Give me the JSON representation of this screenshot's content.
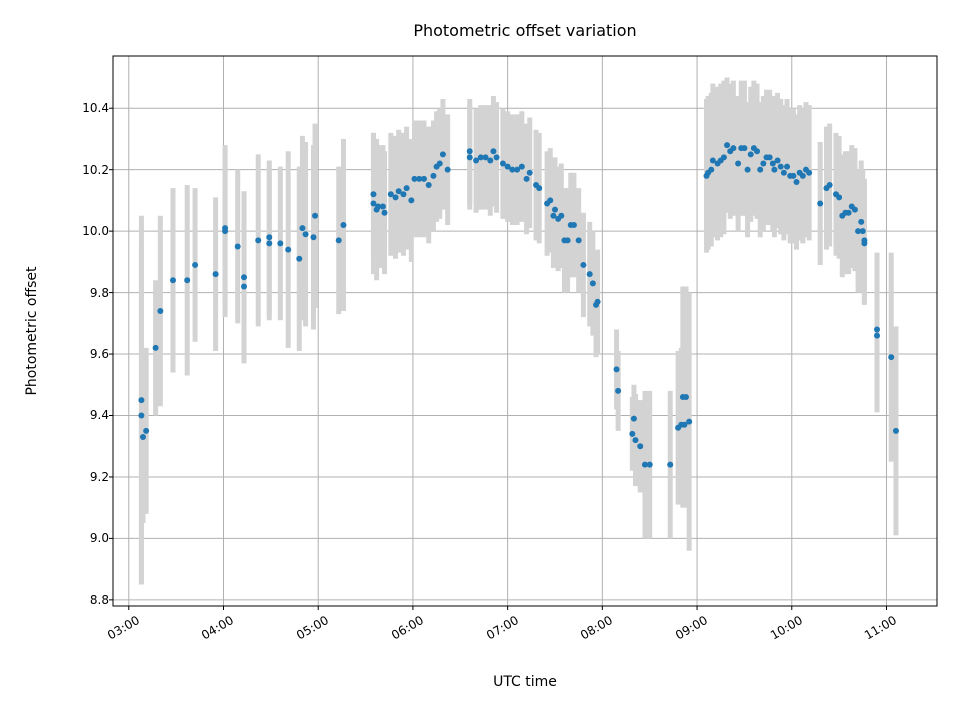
{
  "chart_data": {
    "type": "scatter",
    "title": "Photometric offset variation",
    "xlabel": "UTC time",
    "ylabel": "Photometric offset",
    "xlim": [
      "02:50",
      "11:32"
    ],
    "ylim": [
      8.78,
      10.57
    ],
    "grid": true,
    "colors": {
      "point": "#1f77b4",
      "errorbar": "#d3d3d3",
      "grid": "#b0b0b0"
    },
    "x_ticks": [
      "03:00",
      "04:00",
      "05:00",
      "06:00",
      "07:00",
      "08:00",
      "09:00",
      "10:00",
      "11:00"
    ],
    "y_ticks": [
      "8.8",
      "9.0",
      "9.2",
      "9.4",
      "9.6",
      "9.8",
      "10.0",
      "10.2",
      "10.4"
    ],
    "points": [
      {
        "x": "03:08",
        "y": 9.45,
        "err": 0.6
      },
      {
        "x": "03:08",
        "y": 9.4,
        "err": 0.55
      },
      {
        "x": "03:09",
        "y": 9.33,
        "err": 0.28
      },
      {
        "x": "03:11",
        "y": 9.35,
        "err": 0.27
      },
      {
        "x": "03:17",
        "y": 9.62,
        "err": 0.22
      },
      {
        "x": "03:20",
        "y": 9.74,
        "err": 0.31
      },
      {
        "x": "03:28",
        "y": 9.84,
        "err": 0.3
      },
      {
        "x": "03:37",
        "y": 9.84,
        "err": 0.31
      },
      {
        "x": "03:42",
        "y": 9.89,
        "err": 0.25
      },
      {
        "x": "03:55",
        "y": 9.86,
        "err": 0.25
      },
      {
        "x": "04:01",
        "y": 10.0,
        "err": 0.28
      },
      {
        "x": "04:01",
        "y": 10.01,
        "err": 0.26
      },
      {
        "x": "04:09",
        "y": 9.95,
        "err": 0.25
      },
      {
        "x": "04:13",
        "y": 9.85,
        "err": 0.28
      },
      {
        "x": "04:13",
        "y": 9.82,
        "err": 0.25
      },
      {
        "x": "04:22",
        "y": 9.97,
        "err": 0.28
      },
      {
        "x": "04:29",
        "y": 9.98,
        "err": 0.25
      },
      {
        "x": "04:29",
        "y": 9.96,
        "err": 0.25
      },
      {
        "x": "04:36",
        "y": 9.96,
        "err": 0.25
      },
      {
        "x": "04:41",
        "y": 9.94,
        "err": 0.32
      },
      {
        "x": "04:48",
        "y": 9.91,
        "err": 0.3
      },
      {
        "x": "04:50",
        "y": 10.01,
        "err": 0.3
      },
      {
        "x": "04:52",
        "y": 9.99,
        "err": 0.3
      },
      {
        "x": "04:57",
        "y": 9.98,
        "err": 0.3
      },
      {
        "x": "04:58",
        "y": 10.05,
        "err": 0.3
      },
      {
        "x": "05:13",
        "y": 9.97,
        "err": 0.24
      },
      {
        "x": "05:16",
        "y": 10.02,
        "err": 0.28
      },
      {
        "x": "05:35",
        "y": 10.12,
        "err": 0.2
      },
      {
        "x": "05:35",
        "y": 10.09,
        "err": 0.23
      },
      {
        "x": "05:37",
        "y": 10.07,
        "err": 0.23
      },
      {
        "x": "05:38",
        "y": 10.08,
        "err": 0.2
      },
      {
        "x": "05:41",
        "y": 10.08,
        "err": 0.2
      },
      {
        "x": "05:42",
        "y": 10.06,
        "err": 0.2
      },
      {
        "x": "05:46",
        "y": 10.12,
        "err": 0.2
      },
      {
        "x": "05:49",
        "y": 10.11,
        "err": 0.2
      },
      {
        "x": "05:51",
        "y": 10.13,
        "err": 0.2
      },
      {
        "x": "05:54",
        "y": 10.12,
        "err": 0.2
      },
      {
        "x": "05:56",
        "y": 10.14,
        "err": 0.2
      },
      {
        "x": "05:59",
        "y": 10.1,
        "err": 0.2
      },
      {
        "x": "06:01",
        "y": 10.17,
        "err": 0.19
      },
      {
        "x": "06:04",
        "y": 10.17,
        "err": 0.19
      },
      {
        "x": "06:07",
        "y": 10.17,
        "err": 0.19
      },
      {
        "x": "06:10",
        "y": 10.15,
        "err": 0.19
      },
      {
        "x": "06:13",
        "y": 10.18,
        "err": 0.18
      },
      {
        "x": "06:15",
        "y": 10.21,
        "err": 0.18
      },
      {
        "x": "06:17",
        "y": 10.22,
        "err": 0.18
      },
      {
        "x": "06:19",
        "y": 10.25,
        "err": 0.18
      },
      {
        "x": "06:22",
        "y": 10.2,
        "err": 0.18
      },
      {
        "x": "06:36",
        "y": 10.26,
        "err": 0.17
      },
      {
        "x": "06:36",
        "y": 10.24,
        "err": 0.17
      },
      {
        "x": "06:40",
        "y": 10.23,
        "err": 0.17
      },
      {
        "x": "06:43",
        "y": 10.24,
        "err": 0.17
      },
      {
        "x": "06:46",
        "y": 10.24,
        "err": 0.17
      },
      {
        "x": "06:49",
        "y": 10.23,
        "err": 0.18
      },
      {
        "x": "06:51",
        "y": 10.26,
        "err": 0.18
      },
      {
        "x": "06:53",
        "y": 10.24,
        "err": 0.18
      },
      {
        "x": "06:57",
        "y": 10.22,
        "err": 0.18
      },
      {
        "x": "07:00",
        "y": 10.21,
        "err": 0.18
      },
      {
        "x": "07:03",
        "y": 10.2,
        "err": 0.18
      },
      {
        "x": "07:06",
        "y": 10.2,
        "err": 0.18
      },
      {
        "x": "07:09",
        "y": 10.21,
        "err": 0.18
      },
      {
        "x": "07:12",
        "y": 10.17,
        "err": 0.18
      },
      {
        "x": "07:14",
        "y": 10.19,
        "err": 0.18
      },
      {
        "x": "07:18",
        "y": 10.15,
        "err": 0.18
      },
      {
        "x": "07:20",
        "y": 10.14,
        "err": 0.18
      },
      {
        "x": "07:25",
        "y": 10.09,
        "err": 0.17
      },
      {
        "x": "07:27",
        "y": 10.1,
        "err": 0.17
      },
      {
        "x": "07:29",
        "y": 10.05,
        "err": 0.17
      },
      {
        "x": "07:30",
        "y": 10.07,
        "err": 0.17
      },
      {
        "x": "07:32",
        "y": 10.04,
        "err": 0.17
      },
      {
        "x": "07:34",
        "y": 10.05,
        "err": 0.17
      },
      {
        "x": "07:36",
        "y": 9.97,
        "err": 0.17
      },
      {
        "x": "07:38",
        "y": 9.97,
        "err": 0.17
      },
      {
        "x": "07:40",
        "y": 10.02,
        "err": 0.17
      },
      {
        "x": "07:42",
        "y": 10.02,
        "err": 0.17
      },
      {
        "x": "07:45",
        "y": 9.97,
        "err": 0.17
      },
      {
        "x": "07:48",
        "y": 9.89,
        "err": 0.17
      },
      {
        "x": "07:52",
        "y": 9.86,
        "err": 0.17
      },
      {
        "x": "07:54",
        "y": 9.83,
        "err": 0.17
      },
      {
        "x": "07:56",
        "y": 9.76,
        "err": 0.17
      },
      {
        "x": "07:57",
        "y": 9.77,
        "err": 0.17
      },
      {
        "x": "08:09",
        "y": 9.55,
        "err": 0.13
      },
      {
        "x": "08:10",
        "y": 9.48,
        "err": 0.13
      },
      {
        "x": "08:19",
        "y": 9.34,
        "err": 0.12
      },
      {
        "x": "08:20",
        "y": 9.39,
        "err": 0.11
      },
      {
        "x": "08:21",
        "y": 9.32,
        "err": 0.15
      },
      {
        "x": "08:24",
        "y": 9.3,
        "err": 0.15
      },
      {
        "x": "08:27",
        "y": 9.24,
        "err": 0.24
      },
      {
        "x": "08:30",
        "y": 9.24,
        "err": 0.24
      },
      {
        "x": "08:43",
        "y": 9.24,
        "err": 0.24
      },
      {
        "x": "08:48",
        "y": 9.36,
        "err": 0.25
      },
      {
        "x": "08:50",
        "y": 9.37,
        "err": 0.25
      },
      {
        "x": "08:51",
        "y": 9.46,
        "err": 0.36
      },
      {
        "x": "08:52",
        "y": 9.37,
        "err": 0.2
      },
      {
        "x": "08:53",
        "y": 9.46,
        "err": 0.36
      },
      {
        "x": "08:55",
        "y": 9.38,
        "err": 0.42
      },
      {
        "x": "09:06",
        "y": 10.18,
        "err": 0.25
      },
      {
        "x": "09:07",
        "y": 10.19,
        "err": 0.25
      },
      {
        "x": "09:09",
        "y": 10.2,
        "err": 0.25
      },
      {
        "x": "09:10",
        "y": 10.23,
        "err": 0.25
      },
      {
        "x": "09:13",
        "y": 10.22,
        "err": 0.25
      },
      {
        "x": "09:15",
        "y": 10.23,
        "err": 0.25
      },
      {
        "x": "09:17",
        "y": 10.24,
        "err": 0.25
      },
      {
        "x": "09:19",
        "y": 10.28,
        "err": 0.22
      },
      {
        "x": "09:21",
        "y": 10.26,
        "err": 0.22
      },
      {
        "x": "09:23",
        "y": 10.27,
        "err": 0.22
      },
      {
        "x": "09:26",
        "y": 10.22,
        "err": 0.22
      },
      {
        "x": "09:28",
        "y": 10.27,
        "err": 0.22
      },
      {
        "x": "09:30",
        "y": 10.27,
        "err": 0.22
      },
      {
        "x": "09:32",
        "y": 10.2,
        "err": 0.22
      },
      {
        "x": "09:34",
        "y": 10.25,
        "err": 0.22
      },
      {
        "x": "09:36",
        "y": 10.27,
        "err": 0.22
      },
      {
        "x": "09:38",
        "y": 10.26,
        "err": 0.22
      },
      {
        "x": "09:40",
        "y": 10.2,
        "err": 0.22
      },
      {
        "x": "09:42",
        "y": 10.22,
        "err": 0.22
      },
      {
        "x": "09:44",
        "y": 10.24,
        "err": 0.22
      },
      {
        "x": "09:46",
        "y": 10.24,
        "err": 0.22
      },
      {
        "x": "09:48",
        "y": 10.22,
        "err": 0.22
      },
      {
        "x": "09:49",
        "y": 10.2,
        "err": 0.22
      },
      {
        "x": "09:51",
        "y": 10.23,
        "err": 0.22
      },
      {
        "x": "09:53",
        "y": 10.21,
        "err": 0.22
      },
      {
        "x": "09:55",
        "y": 10.19,
        "err": 0.22
      },
      {
        "x": "09:57",
        "y": 10.21,
        "err": 0.22
      },
      {
        "x": "09:59",
        "y": 10.18,
        "err": 0.22
      },
      {
        "x": "10:01",
        "y": 10.18,
        "err": 0.22
      },
      {
        "x": "10:03",
        "y": 10.16,
        "err": 0.22
      },
      {
        "x": "10:05",
        "y": 10.19,
        "err": 0.22
      },
      {
        "x": "10:07",
        "y": 10.18,
        "err": 0.22
      },
      {
        "x": "10:09",
        "y": 10.2,
        "err": 0.22
      },
      {
        "x": "10:11",
        "y": 10.19,
        "err": 0.22
      },
      {
        "x": "10:18",
        "y": 10.09,
        "err": 0.2
      },
      {
        "x": "10:22",
        "y": 10.14,
        "err": 0.2
      },
      {
        "x": "10:24",
        "y": 10.15,
        "err": 0.2
      },
      {
        "x": "10:28",
        "y": 10.12,
        "err": 0.2
      },
      {
        "x": "10:30",
        "y": 10.11,
        "err": 0.2
      },
      {
        "x": "10:32",
        "y": 10.05,
        "err": 0.2
      },
      {
        "x": "10:34",
        "y": 10.06,
        "err": 0.2
      },
      {
        "x": "10:36",
        "y": 10.06,
        "err": 0.2
      },
      {
        "x": "10:38",
        "y": 10.08,
        "err": 0.2
      },
      {
        "x": "10:40",
        "y": 10.07,
        "err": 0.2
      },
      {
        "x": "10:42",
        "y": 10.0,
        "err": 0.2
      },
      {
        "x": "10:44",
        "y": 10.03,
        "err": 0.2
      },
      {
        "x": "10:45",
        "y": 10.0,
        "err": 0.2
      },
      {
        "x": "10:46",
        "y": 9.97,
        "err": 0.2
      },
      {
        "x": "10:46",
        "y": 9.96,
        "err": 0.2
      },
      {
        "x": "10:54",
        "y": 9.68,
        "err": 0.25
      },
      {
        "x": "10:54",
        "y": 9.66,
        "err": 0.25
      },
      {
        "x": "11:03",
        "y": 9.59,
        "err": 0.34
      },
      {
        "x": "11:06",
        "y": 9.35,
        "err": 0.34
      }
    ]
  }
}
